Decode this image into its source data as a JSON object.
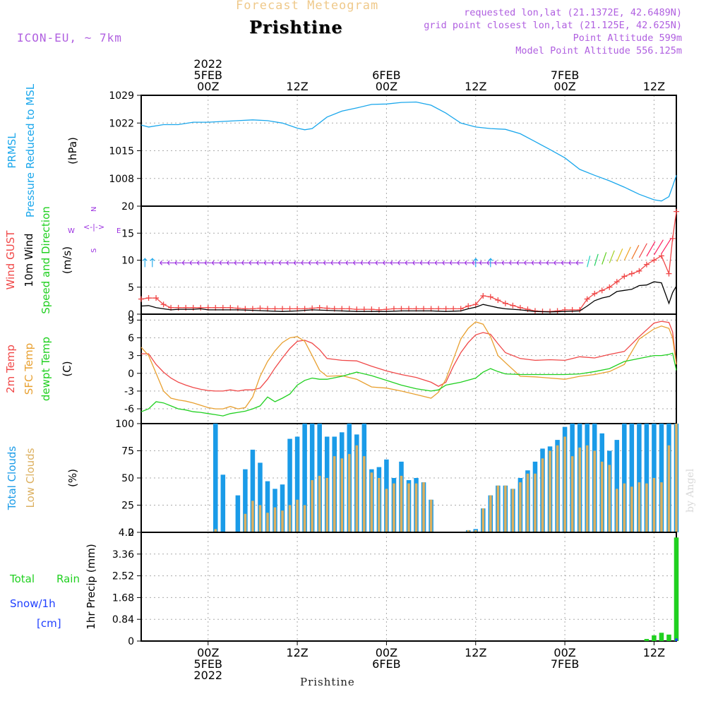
{
  "header": {
    "title": "Forecast Meteogram",
    "location": "Prishtine",
    "model": "ICON-EU, ~ 7km",
    "requested": "requested lon,lat (21.1372E, 42.6489N)",
    "gridpoint": "grid point closest lon,lat (21.125E, 42.625N)",
    "point_altitude": "Point Altitude 599m",
    "model_altitude": "Model Point Altitude 556.125m",
    "footer_location": "Prishtine",
    "watermark": "by Angel"
  },
  "time_axis": {
    "start_hour": -9,
    "end_hour": 63,
    "ticks": [
      {
        "hour": 0,
        "top": [
          "2022",
          "5FEB",
          "00Z"
        ],
        "bottom": [
          "00Z",
          "5FEB",
          "2022"
        ]
      },
      {
        "hour": 12,
        "top": [
          "12Z"
        ],
        "bottom": [
          "12Z"
        ]
      },
      {
        "hour": 24,
        "top": [
          "6FEB",
          "00Z"
        ],
        "bottom": [
          "00Z",
          "6FEB"
        ]
      },
      {
        "hour": 36,
        "top": [
          "12Z"
        ],
        "bottom": [
          "12Z"
        ]
      },
      {
        "hour": 48,
        "top": [
          "7FEB",
          "00Z"
        ],
        "bottom": [
          "00Z",
          "7FEB"
        ]
      },
      {
        "hour": 60,
        "top": [
          "12Z"
        ],
        "bottom": [
          "12Z"
        ]
      }
    ]
  },
  "colors": {
    "pressure": "#1aa7ec",
    "gust": "#f04848",
    "wind": "#000000",
    "t2m": "#f04848",
    "sfc": "#e8a030",
    "dew": "#20d020",
    "total_cloud": "#1a9be8",
    "low_cloud": "#dcb060",
    "rain": "#20d020",
    "snow": "#2040ff",
    "wind_arrow": "#9b30e0"
  },
  "chart_data": [
    {
      "type": "line",
      "panel": "pressure",
      "title": "",
      "ylabel": [
        "PRMSL",
        "Pressure Reduced to MSL",
        "(hPa)"
      ],
      "ylabel_colors": [
        "#1aa7ec",
        "#1aa7ec",
        "#000000"
      ],
      "ylim": [
        1001,
        1029
      ],
      "yticks": [
        1008,
        1015,
        1022,
        1029
      ],
      "series": [
        {
          "name": "PRMSL",
          "color": "#1aa7ec",
          "x": [
            -9,
            -8,
            -6,
            -4,
            -2,
            0,
            2,
            4,
            6,
            8,
            10,
            12,
            13,
            14,
            16,
            18,
            20,
            22,
            24,
            26,
            28,
            30,
            32,
            34,
            36,
            38,
            40,
            42,
            44,
            46,
            48,
            50,
            52,
            54,
            56,
            58,
            60,
            61,
            62,
            62.5,
            63
          ],
          "y": [
            1021.5,
            1021,
            1021.6,
            1021.6,
            1022.2,
            1022.2,
            1022.4,
            1022.6,
            1022.8,
            1022.6,
            1022,
            1020.7,
            1020.3,
            1020.6,
            1023.5,
            1025,
            1025.8,
            1026.7,
            1026.8,
            1027.2,
            1027.3,
            1026.5,
            1024.5,
            1022,
            1021,
            1020.6,
            1020.4,
            1019.3,
            1017.3,
            1015.3,
            1013.2,
            1010.3,
            1008.8,
            1007.4,
            1005.8,
            1004,
            1002.6,
            1002.3,
            1003.4,
            1006,
            1008.8
          ]
        }
      ]
    },
    {
      "type": "line",
      "panel": "wind",
      "ylabel": [
        "Wind GUST",
        "10m Wind",
        "Speed and Direction",
        "(m/s)"
      ],
      "ylabel_colors": [
        "#f04848",
        "#000000",
        "#20d020",
        "#000000"
      ],
      "compass": "N W <-|-> E S",
      "ylim": [
        0,
        20
      ],
      "yticks": [
        0,
        5,
        10,
        15,
        20
      ],
      "series": [
        {
          "name": "Wind GUST",
          "color": "#f04848",
          "x": [
            -9,
            -8,
            -7,
            -6,
            -5,
            -4,
            -3,
            -2,
            -1,
            0,
            1,
            2,
            3,
            4,
            5,
            6,
            7,
            8,
            9,
            10,
            11,
            12,
            13,
            14,
            15,
            16,
            17,
            18,
            19,
            20,
            21,
            22,
            23,
            24,
            25,
            26,
            27,
            28,
            29,
            30,
            31,
            32,
            33,
            34,
            35,
            36,
            37,
            38,
            39,
            40,
            41,
            42,
            43,
            44,
            45,
            46,
            47,
            48,
            49,
            50,
            51,
            52,
            53,
            54,
            55,
            56,
            57,
            58,
            59,
            60,
            61,
            62,
            62.5,
            63
          ],
          "y": [
            2.8,
            3,
            3,
            1.8,
            1.2,
            1.2,
            1.2,
            1.2,
            1.2,
            1.2,
            1.2,
            1.2,
            1.2,
            1.1,
            1.0,
            1.0,
            1.1,
            1.0,
            1.0,
            1.0,
            1.0,
            1.0,
            1.0,
            1.1,
            1.2,
            1.1,
            1.0,
            1.0,
            1.0,
            0.9,
            0.9,
            0.9,
            0.8,
            0.9,
            1.0,
            1.0,
            1.0,
            1.0,
            1.0,
            1.0,
            1.0,
            1.0,
            1.0,
            1.0,
            1.5,
            1.8,
            3.4,
            3.2,
            2.6,
            2.0,
            1.6,
            1.2,
            0.9,
            0.6,
            0.5,
            0.5,
            0.6,
            0.8,
            0.8,
            0.8,
            2.8,
            3.8,
            4.4,
            5.0,
            6.0,
            7.0,
            7.5,
            8.0,
            9.2,
            10.0,
            10.8,
            7.5,
            14.0,
            19.0
          ]
        },
        {
          "name": "10m Wind",
          "color": "#000000",
          "x": [
            -9,
            -8,
            -7,
            -6,
            -5,
            -4,
            -3,
            -2,
            -1,
            0,
            2,
            4,
            6,
            8,
            10,
            12,
            14,
            16,
            18,
            20,
            22,
            24,
            26,
            28,
            30,
            32,
            34,
            35,
            36,
            37,
            38,
            39,
            40,
            42,
            44,
            46,
            48,
            50,
            51,
            52,
            53,
            54,
            55,
            56,
            57,
            58,
            59,
            60,
            61,
            62,
            62.5,
            63
          ],
          "y": [
            1.5,
            1.6,
            1.2,
            1.0,
            0.8,
            0.9,
            0.9,
            0.9,
            1.0,
            0.8,
            0.8,
            0.8,
            0.7,
            0.6,
            0.5,
            0.6,
            0.8,
            0.7,
            0.6,
            0.5,
            0.5,
            0.5,
            0.6,
            0.6,
            0.6,
            0.5,
            0.6,
            1.0,
            1.3,
            1.8,
            1.5,
            1.2,
            1.0,
            0.8,
            0.5,
            0.4,
            0.5,
            0.6,
            1.5,
            2.5,
            3.0,
            3.3,
            4.2,
            4.4,
            4.6,
            5.3,
            5.4,
            6.0,
            5.8,
            2.0,
            4.0,
            5.2
          ]
        }
      ]
    },
    {
      "type": "line",
      "panel": "temperature",
      "ylabel": [
        "2m Temp",
        "SFC Temp",
        "dewpt Temp",
        "(C)"
      ],
      "ylabel_colors": [
        "#f04848",
        "#e8a030",
        "#20d020",
        "#000000"
      ],
      "ylim": [
        -8.5,
        10
      ],
      "yticks": [
        -6,
        -3,
        0,
        3,
        6,
        9
      ],
      "series": [
        {
          "name": "2m Temp",
          "color": "#f04848",
          "x": [
            -9,
            -8,
            -7,
            -6,
            -5,
            -4,
            -3,
            -2,
            -1,
            0,
            1,
            2,
            3,
            4,
            5,
            6,
            7,
            8,
            9,
            10,
            11,
            12,
            13,
            14,
            15,
            16,
            18,
            20,
            22,
            24,
            26,
            28,
            30,
            31,
            32,
            33,
            34,
            35,
            36,
            37,
            38,
            39,
            40,
            42,
            44,
            46,
            48,
            50,
            52,
            54,
            56,
            58,
            60,
            61,
            62,
            62.5,
            63
          ],
          "y": [
            3.3,
            3.3,
            1.5,
            0.2,
            -0.8,
            -1.5,
            -2.0,
            -2.4,
            -2.7,
            -2.9,
            -3.0,
            -3.0,
            -2.8,
            -3.0,
            -2.8,
            -2.8,
            -2.5,
            -1.0,
            0.9,
            2.6,
            4.2,
            5.4,
            5.6,
            5.1,
            4.0,
            2.5,
            2.2,
            2.1,
            1.2,
            0.4,
            -0.2,
            -0.7,
            -1.5,
            -2.2,
            -1.5,
            1.2,
            3.5,
            5.2,
            6.5,
            6.9,
            6.6,
            5.0,
            3.5,
            2.5,
            2.2,
            2.3,
            2.2,
            2.8,
            2.6,
            3.2,
            3.7,
            6.2,
            8.5,
            8.8,
            8.6,
            7.0,
            1.5
          ]
        },
        {
          "name": "SFC Temp",
          "color": "#e8a030",
          "x": [
            -9,
            -8,
            -7,
            -6,
            -5,
            -4,
            -3,
            -2,
            -1,
            0,
            1,
            2,
            3,
            4,
            5,
            6,
            7,
            8,
            9,
            10,
            11,
            12,
            13,
            14,
            15,
            16,
            18,
            20,
            22,
            24,
            26,
            28,
            30,
            31,
            32,
            33,
            34,
            35,
            36,
            37,
            38,
            39,
            40,
            42,
            44,
            46,
            48,
            50,
            52,
            54,
            56,
            58,
            60,
            61,
            62,
            62.5,
            63
          ],
          "y": [
            4.4,
            3.0,
            0.0,
            -3.0,
            -4.2,
            -4.5,
            -4.7,
            -5.0,
            -5.4,
            -5.8,
            -6.0,
            -6.0,
            -5.6,
            -6.0,
            -5.8,
            -4.0,
            -0.5,
            2.0,
            3.8,
            5.2,
            6.0,
            6.2,
            5.4,
            3.0,
            0.5,
            -0.5,
            -0.4,
            -1.0,
            -2.3,
            -2.5,
            -3.0,
            -3.6,
            -4.2,
            -3.2,
            -1.0,
            2.4,
            5.8,
            7.6,
            8.7,
            8.3,
            6.2,
            3.0,
            1.8,
            -0.5,
            -0.6,
            -0.8,
            -1.0,
            -0.5,
            -0.2,
            0.3,
            1.5,
            5.8,
            7.5,
            8.0,
            7.6,
            6.0,
            1.5
          ]
        },
        {
          "name": "dewpt Temp",
          "color": "#20d020",
          "x": [
            -9,
            -8,
            -7,
            -6,
            -5,
            -4,
            -3,
            -2,
            -1,
            0,
            1,
            2,
            3,
            4,
            5,
            6,
            7,
            8,
            9,
            10,
            11,
            12,
            13,
            14,
            15,
            16,
            18,
            20,
            22,
            24,
            26,
            28,
            30,
            31,
            32,
            34,
            36,
            37,
            38,
            39,
            40,
            42,
            44,
            46,
            48,
            50,
            52,
            54,
            56,
            58,
            60,
            61,
            62,
            62.5,
            63
          ],
          "y": [
            -6.5,
            -6.0,
            -4.8,
            -5.0,
            -5.5,
            -6.0,
            -6.2,
            -6.5,
            -6.6,
            -6.8,
            -7.0,
            -7.2,
            -6.8,
            -6.6,
            -6.4,
            -6.0,
            -5.5,
            -4.0,
            -4.8,
            -4.2,
            -3.5,
            -2.0,
            -1.2,
            -0.8,
            -1.0,
            -1.0,
            -0.5,
            0.2,
            -0.4,
            -1.2,
            -2.0,
            -2.6,
            -3.0,
            -2.8,
            -2.0,
            -1.5,
            -0.8,
            0.2,
            0.8,
            0.3,
            -0.1,
            -0.2,
            -0.2,
            -0.2,
            -0.2,
            -0.1,
            0.3,
            0.8,
            2.0,
            2.5,
            3.0,
            3.0,
            3.2,
            3.4,
            0.5
          ]
        }
      ]
    },
    {
      "type": "bar",
      "panel": "clouds",
      "ylabel": [
        "Total Clouds",
        "Low Clouds",
        "(%)"
      ],
      "ylabel_colors": [
        "#1a9be8",
        "#dcb060",
        "#000000"
      ],
      "ylim": [
        0,
        100
      ],
      "yticks": [
        0,
        25,
        50,
        75,
        100
      ],
      "x": [
        1,
        2,
        4,
        5,
        6,
        7,
        8,
        9,
        10,
        11,
        12,
        13,
        14,
        15,
        16,
        17,
        18,
        19,
        20,
        21,
        22,
        23,
        24,
        25,
        26,
        27,
        28,
        29,
        30,
        31,
        35,
        36,
        37,
        38,
        39,
        40,
        41,
        42,
        43,
        44,
        45,
        46,
        47,
        48,
        49,
        50,
        51,
        52,
        53,
        54,
        55,
        56,
        57,
        58,
        59,
        60,
        61,
        62,
        63
      ],
      "series": [
        {
          "name": "Total Clouds",
          "color": "#1a9be8",
          "values": [
            100,
            53,
            34,
            58,
            76,
            64,
            47,
            40,
            44,
            86,
            88,
            100,
            100,
            100,
            88,
            88,
            92,
            100,
            90,
            100,
            58,
            60,
            67,
            50,
            65,
            48,
            50,
            46,
            30,
            0,
            2,
            3,
            22,
            34,
            43,
            43,
            40,
            50,
            57,
            65,
            77,
            79,
            85,
            97,
            100,
            100,
            100,
            100,
            91,
            75,
            85,
            100,
            100,
            100,
            100,
            100,
            100,
            100,
            100
          ]
        },
        {
          "name": "Low Clouds",
          "color": "#dcb060",
          "values": [
            3,
            0,
            0,
            17,
            29,
            25,
            18,
            23,
            20,
            25,
            30,
            25,
            48,
            52,
            50,
            70,
            68,
            72,
            80,
            70,
            55,
            50,
            40,
            45,
            52,
            45,
            45,
            46,
            30,
            0,
            2,
            2,
            22,
            34,
            43,
            43,
            40,
            46,
            54,
            54,
            68,
            75,
            80,
            88,
            70,
            78,
            80,
            75,
            65,
            62,
            40,
            45,
            42,
            46,
            45,
            50,
            46,
            80,
            100
          ]
        }
      ]
    },
    {
      "type": "bar",
      "panel": "precip",
      "ylabel": [
        "1hr Precip (mm)"
      ],
      "side_labels": [
        "Total",
        "Rain",
        "Snow/1h",
        "[cm]"
      ],
      "side_colors": [
        "#20d020",
        "#20d020",
        "#2040ff",
        "#2040ff"
      ],
      "ylim": [
        0,
        4.2
      ],
      "yticks": [
        0,
        0.84,
        1.68,
        2.52,
        3.36,
        4.2
      ],
      "x": [
        59,
        60,
        61,
        62,
        63
      ],
      "series": [
        {
          "name": "Total Rain",
          "color": "#20d020",
          "values": [
            0.08,
            0.22,
            0.32,
            0.25,
            4.0
          ]
        },
        {
          "name": "Snow/1h",
          "color": "#2040ff",
          "values": [
            0,
            0,
            0,
            0,
            0.1
          ]
        }
      ]
    }
  ]
}
